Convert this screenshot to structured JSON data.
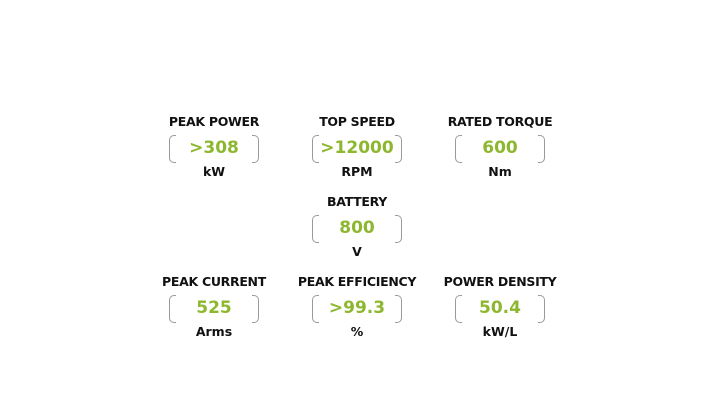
{
  "specs": [
    {
      "label": "PEAK POWER",
      "value": ">308",
      "unit": "kW"
    },
    {
      "label": "TOP SPEED",
      "value": ">12000",
      "unit": "RPM"
    },
    {
      "label": "RATED TORQUE",
      "value": "600",
      "unit": "Nm"
    },
    {
      "label": "BATTERY",
      "value": "800",
      "unit": "V"
    },
    {
      "label": "PEAK CURRENT",
      "value": "525",
      "unit": "Arms"
    },
    {
      "label": "PEAK EFFICIENCY",
      "value": ">99.3",
      "unit": "%"
    },
    {
      "label": "POWER DENSITY",
      "value": "50.4",
      "unit": "kW/L"
    }
  ],
  "accent": "#8db72e"
}
